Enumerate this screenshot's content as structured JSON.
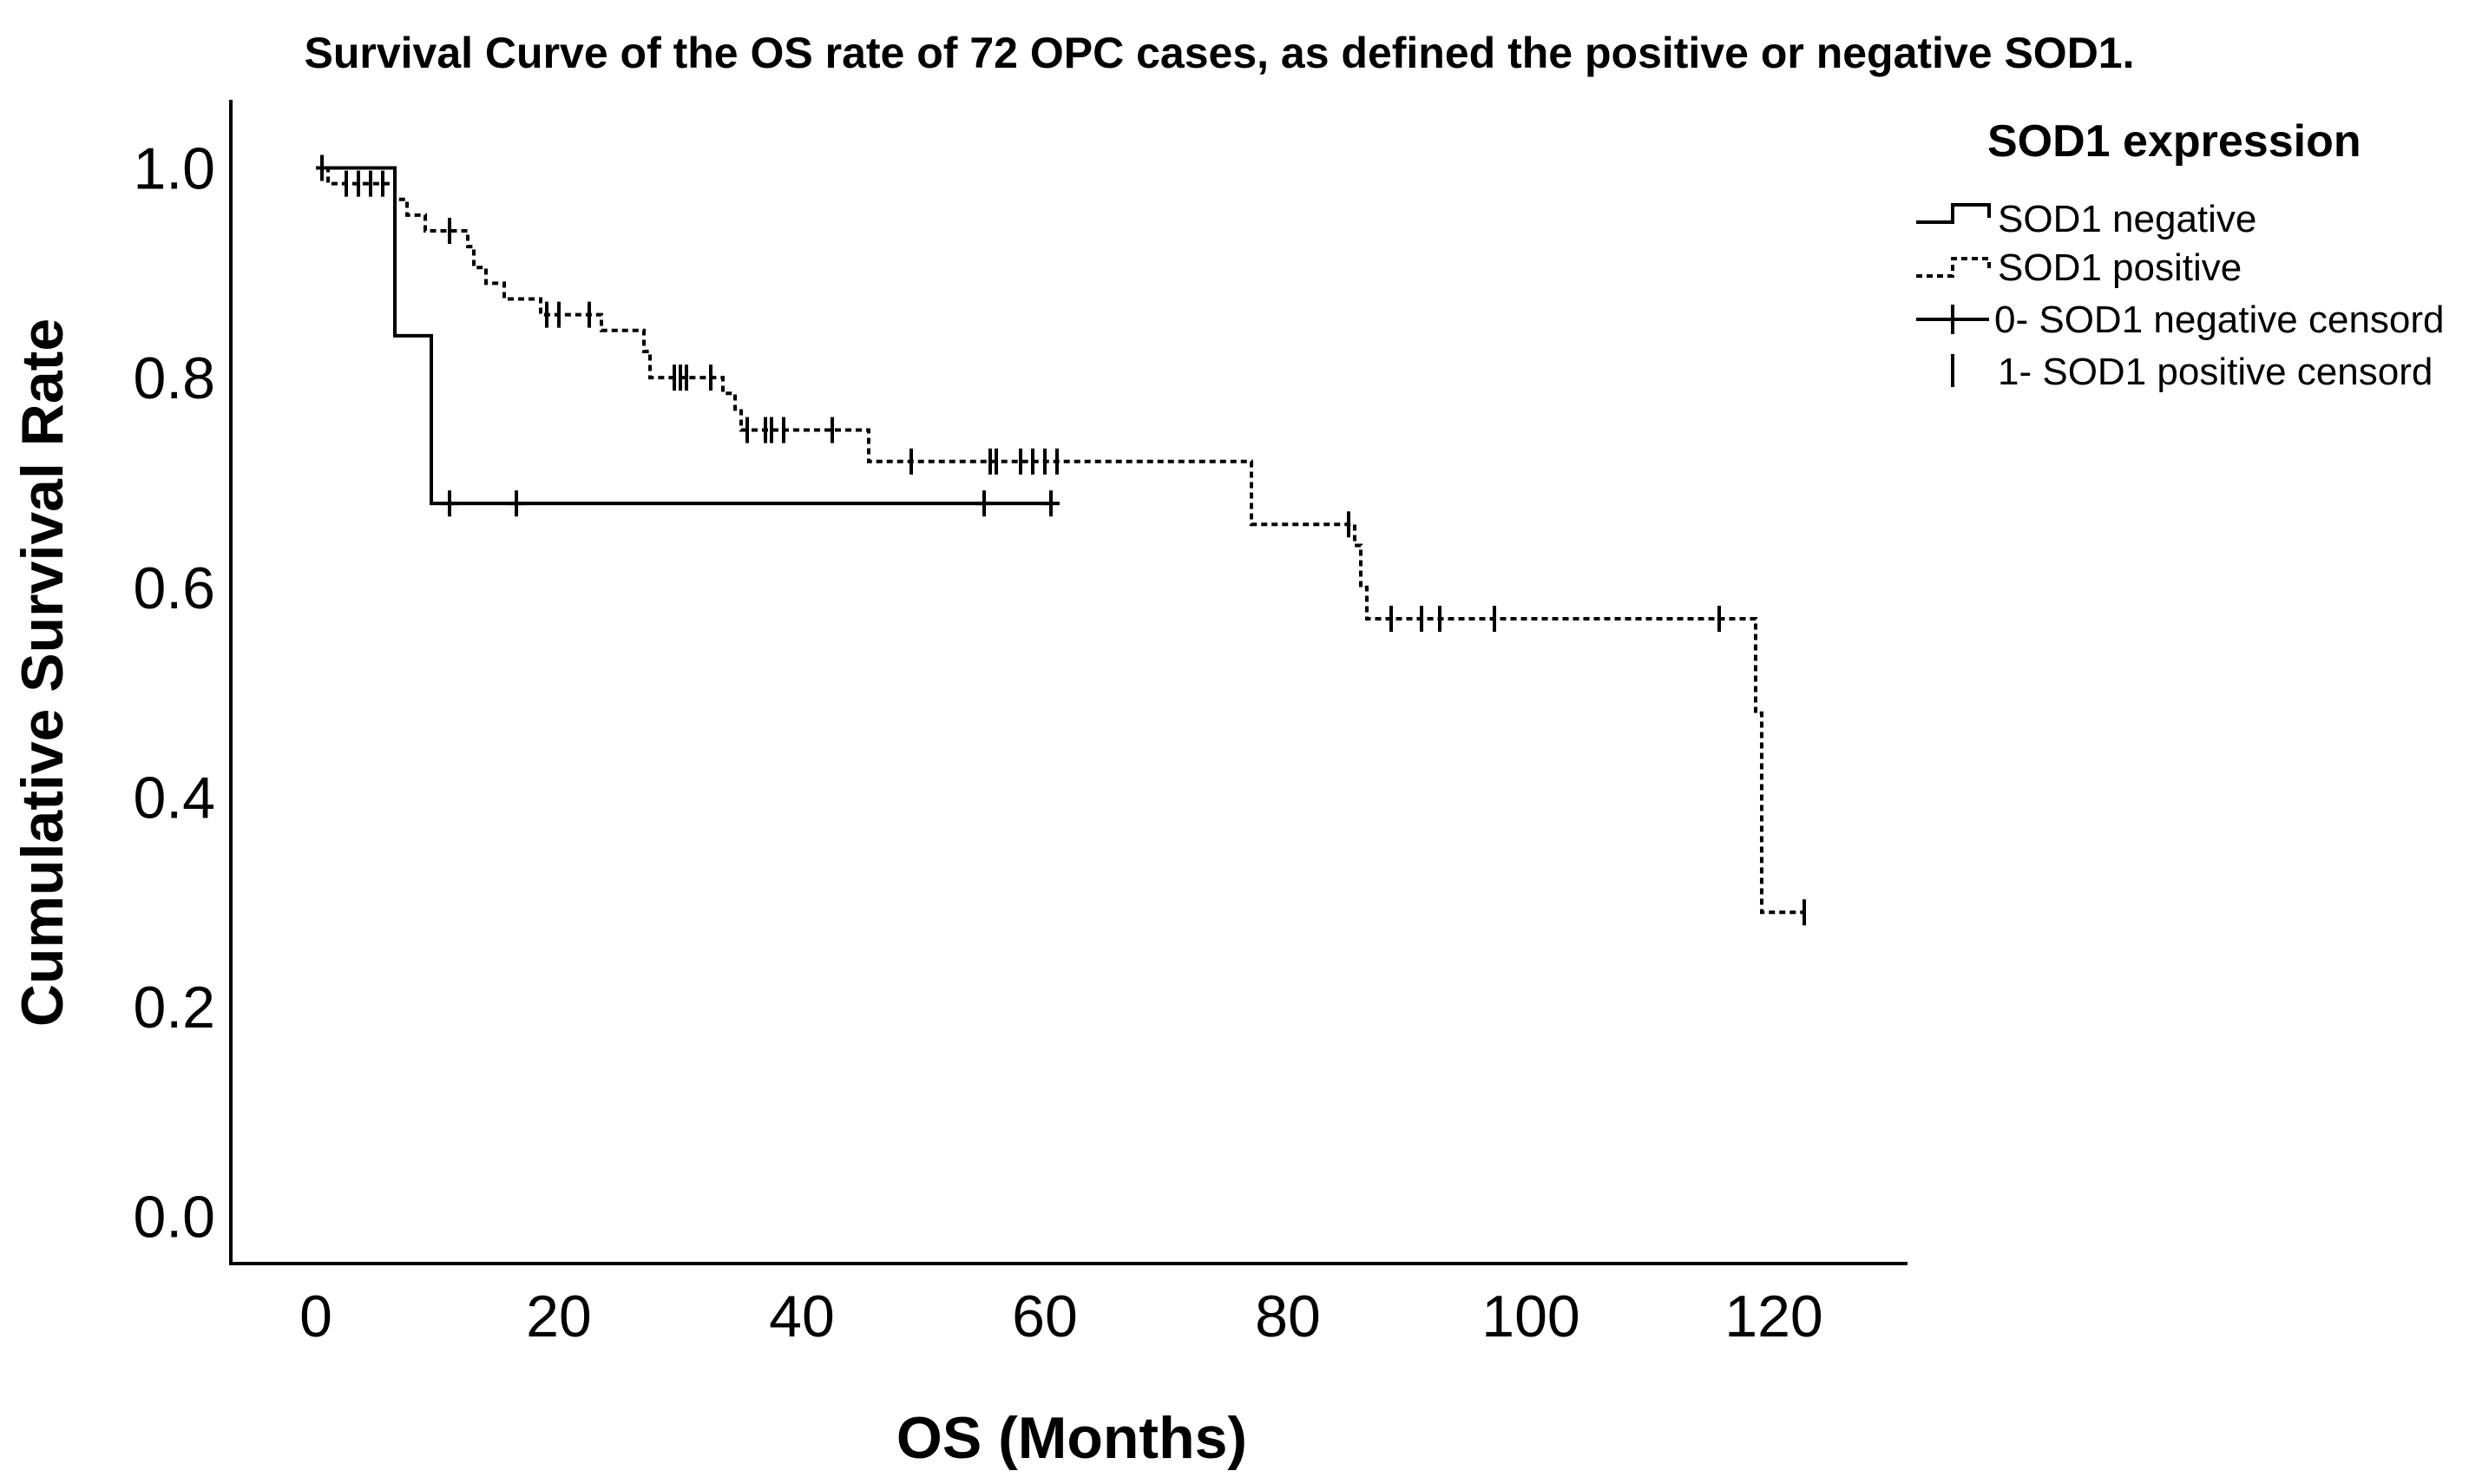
{
  "chart_data": {
    "type": "line",
    "subtype": "kaplan-meier-step",
    "title": "Survival Curve of the OS rate of 72 OPC cases, as defined the positive or negative SOD1.",
    "xlabel": "OS (Months)",
    "ylabel": "Cumulative Survival Rate",
    "xlim": [
      -7,
      131
    ],
    "ylim": [
      -0.045,
      1.065
    ],
    "xticks": [
      0,
      20,
      40,
      60,
      80,
      100,
      120
    ],
    "yticks": [
      0.0,
      0.2,
      0.4,
      0.6,
      0.8,
      1.0
    ],
    "grid": false,
    "legend": {
      "title": "SOD1 expression",
      "placement": "right",
      "entries": [
        "SOD1 negative",
        "SOD1 positive",
        "0- SOD1 negative censord",
        "1- SOD1 positive censord"
      ]
    },
    "series": [
      {
        "name": "SOD1 negative",
        "line_style": "solid",
        "color": "#000000",
        "steps": [
          [
            0,
            1.0
          ],
          [
            6.5,
            0.84
          ],
          [
            9.5,
            0.68
          ],
          [
            60.5,
            0.68
          ]
        ],
        "censored": [
          {
            "x": 11.0,
            "y": 0.68
          },
          {
            "x": 16.5,
            "y": 0.68
          },
          {
            "x": 55.0,
            "y": 0.68
          },
          {
            "x": 60.5,
            "y": 0.68
          }
        ]
      },
      {
        "name": "SOD1 positive",
        "line_style": "dotted",
        "color": "#000000",
        "steps": [
          [
            0,
            1.0
          ],
          [
            1.0,
            0.985
          ],
          [
            6.5,
            0.97
          ],
          [
            7.5,
            0.955
          ],
          [
            9.0,
            0.94
          ],
          [
            12.5,
            0.925
          ],
          [
            13.0,
            0.905
          ],
          [
            14.0,
            0.89
          ],
          [
            15.5,
            0.875
          ],
          [
            18.5,
            0.86
          ],
          [
            23.5,
            0.845
          ],
          [
            27.0,
            0.825
          ],
          [
            27.5,
            0.8
          ],
          [
            33.5,
            0.785
          ],
          [
            34.5,
            0.77
          ],
          [
            35.0,
            0.75
          ],
          [
            45.5,
            0.72
          ],
          [
            77.0,
            0.66
          ],
          [
            85.5,
            0.64
          ],
          [
            86.0,
            0.6
          ],
          [
            86.5,
            0.57
          ],
          [
            118.5,
            0.48
          ],
          [
            119.0,
            0.29
          ],
          [
            122.5,
            0.29
          ]
        ],
        "censored": [
          {
            "x": 0.5,
            "y": 1.0
          },
          {
            "x": 2.5,
            "y": 0.985
          },
          {
            "x": 3.5,
            "y": 0.985
          },
          {
            "x": 4.5,
            "y": 0.985
          },
          {
            "x": 5.5,
            "y": 0.985
          },
          {
            "x": 11.0,
            "y": 0.94
          },
          {
            "x": 19.0,
            "y": 0.86
          },
          {
            "x": 20.0,
            "y": 0.86
          },
          {
            "x": 22.5,
            "y": 0.86
          },
          {
            "x": 29.5,
            "y": 0.8
          },
          {
            "x": 30.0,
            "y": 0.8
          },
          {
            "x": 30.5,
            "y": 0.8
          },
          {
            "x": 32.5,
            "y": 0.8
          },
          {
            "x": 35.5,
            "y": 0.75
          },
          {
            "x": 37.0,
            "y": 0.75
          },
          {
            "x": 37.5,
            "y": 0.75
          },
          {
            "x": 38.5,
            "y": 0.75
          },
          {
            "x": 42.5,
            "y": 0.75
          },
          {
            "x": 49.0,
            "y": 0.72
          },
          {
            "x": 55.5,
            "y": 0.72
          },
          {
            "x": 56.0,
            "y": 0.72
          },
          {
            "x": 58.0,
            "y": 0.72
          },
          {
            "x": 59.0,
            "y": 0.72
          },
          {
            "x": 60.0,
            "y": 0.72
          },
          {
            "x": 61.0,
            "y": 0.72
          },
          {
            "x": 85.0,
            "y": 0.66
          },
          {
            "x": 88.5,
            "y": 0.57
          },
          {
            "x": 91.0,
            "y": 0.57
          },
          {
            "x": 92.5,
            "y": 0.57
          },
          {
            "x": 97.0,
            "y": 0.57
          },
          {
            "x": 115.5,
            "y": 0.57
          },
          {
            "x": 122.5,
            "y": 0.29
          }
        ]
      }
    ]
  }
}
